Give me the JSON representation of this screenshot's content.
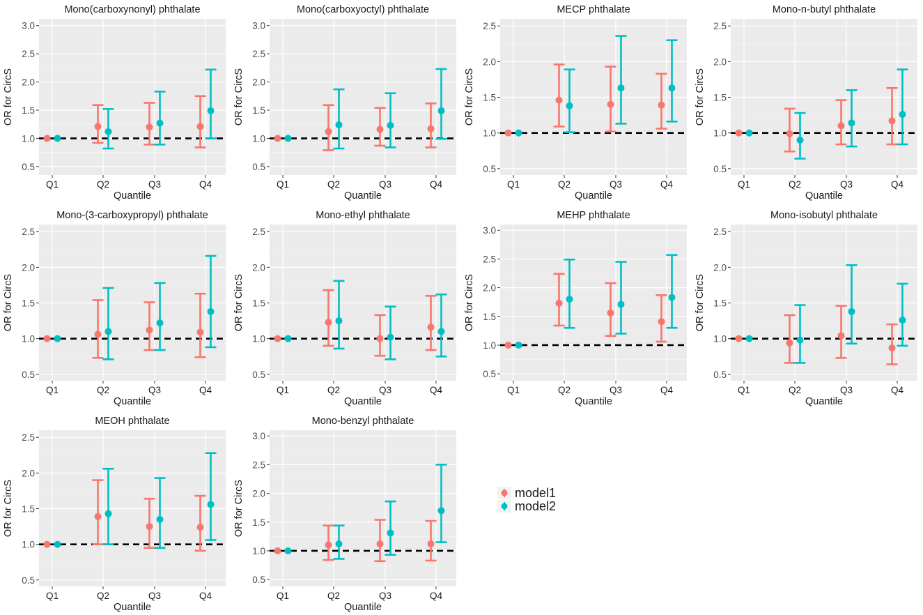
{
  "figure": {
    "legend": {
      "position": "right",
      "entries": [
        {
          "label": "model1",
          "color": "#F8766D"
        },
        {
          "label": "model2",
          "color": "#00BFC4"
        }
      ]
    }
  },
  "chart_data": [
    {
      "type": "errorbar",
      "title": "Mono(carboxynonyl) phthalate",
      "xlabel": "Quantile",
      "ylabel": "OR for CircS",
      "categories": [
        "Q1",
        "Q2",
        "Q3",
        "Q4"
      ],
      "yticks": [
        0.5,
        1.0,
        1.5,
        2.0,
        2.5,
        3.0
      ],
      "ytick_labels": [
        "0.5",
        "1.0",
        "1.5",
        "2.0",
        "2.5",
        "3.0"
      ],
      "ylim": [
        0.35,
        3.12
      ],
      "reference_line": 1.0,
      "series": [
        {
          "name": "model1",
          "color": "#F8766D",
          "points": [
            {
              "or": 1.0,
              "low": 1.0,
              "high": 1.0
            },
            {
              "or": 1.21,
              "low": 0.92,
              "high": 1.59
            },
            {
              "or": 1.2,
              "low": 0.89,
              "high": 1.63
            },
            {
              "or": 1.21,
              "low": 0.84,
              "high": 1.75
            }
          ]
        },
        {
          "name": "model2",
          "color": "#00BFC4",
          "points": [
            {
              "or": 1.0,
              "low": 1.0,
              "high": 1.0
            },
            {
              "or": 1.12,
              "low": 0.82,
              "high": 1.52
            },
            {
              "or": 1.27,
              "low": 0.89,
              "high": 1.83
            },
            {
              "or": 1.49,
              "low": 1.0,
              "high": 2.22
            }
          ]
        }
      ]
    },
    {
      "type": "errorbar",
      "title": "Mono(carboxyoctyl) phthalate",
      "xlabel": "Quantile",
      "ylabel": "OR for CircS",
      "categories": [
        "Q1",
        "Q2",
        "Q3",
        "Q4"
      ],
      "yticks": [
        0.5,
        1.0,
        1.5,
        2.0,
        2.5,
        3.0
      ],
      "ytick_labels": [
        "0.5",
        "1.0",
        "1.5",
        "2.0",
        "2.5",
        "3.0"
      ],
      "ylim": [
        0.35,
        3.12
      ],
      "reference_line": 1.0,
      "series": [
        {
          "name": "model1",
          "color": "#F8766D",
          "points": [
            {
              "or": 1.0,
              "low": 1.0,
              "high": 1.0
            },
            {
              "or": 1.12,
              "low": 0.79,
              "high": 1.59
            },
            {
              "or": 1.16,
              "low": 0.87,
              "high": 1.54
            },
            {
              "or": 1.17,
              "low": 0.84,
              "high": 1.62
            }
          ]
        },
        {
          "name": "model2",
          "color": "#00BFC4",
          "points": [
            {
              "or": 1.0,
              "low": 1.0,
              "high": 1.0
            },
            {
              "or": 1.24,
              "low": 0.82,
              "high": 1.87
            },
            {
              "or": 1.23,
              "low": 0.84,
              "high": 1.8
            },
            {
              "or": 1.49,
              "low": 0.99,
              "high": 2.23
            }
          ]
        }
      ]
    },
    {
      "type": "errorbar",
      "title": "MECP phthalate",
      "xlabel": "Quantile",
      "ylabel": "OR for CircS",
      "categories": [
        "Q1",
        "Q2",
        "Q3",
        "Q4"
      ],
      "yticks": [
        0.5,
        1.0,
        1.5,
        2.0,
        2.5
      ],
      "ytick_labels": [
        "0.5",
        "1.0",
        "1.5",
        "2.0",
        "2.5"
      ],
      "ylim": [
        0.41,
        2.6
      ],
      "reference_line": 1.0,
      "series": [
        {
          "name": "model1",
          "color": "#F8766D",
          "points": [
            {
              "or": 1.0,
              "low": 1.0,
              "high": 1.0
            },
            {
              "or": 1.46,
              "low": 1.09,
              "high": 1.96
            },
            {
              "or": 1.4,
              "low": 1.02,
              "high": 1.93
            },
            {
              "or": 1.39,
              "low": 1.06,
              "high": 1.83
            }
          ]
        },
        {
          "name": "model2",
          "color": "#00BFC4",
          "points": [
            {
              "or": 1.0,
              "low": 1.0,
              "high": 1.0
            },
            {
              "or": 1.38,
              "low": 1.01,
              "high": 1.89
            },
            {
              "or": 1.63,
              "low": 1.13,
              "high": 2.36
            },
            {
              "or": 1.63,
              "low": 1.16,
              "high": 2.3
            }
          ]
        }
      ]
    },
    {
      "type": "errorbar",
      "title": "Mono-n-butyl phthalate",
      "xlabel": "Quantile",
      "ylabel": "OR for CircS",
      "categories": [
        "Q1",
        "Q2",
        "Q3",
        "Q4"
      ],
      "yticks": [
        0.5,
        1.0,
        1.5,
        2.0,
        2.5
      ],
      "ytick_labels": [
        "0.5",
        "1.0",
        "1.5",
        "2.0",
        "2.5"
      ],
      "ylim": [
        0.41,
        2.6
      ],
      "reference_line": 1.0,
      "series": [
        {
          "name": "model1",
          "color": "#F8766D",
          "points": [
            {
              "or": 1.0,
              "low": 1.0,
              "high": 1.0
            },
            {
              "or": 0.99,
              "low": 0.74,
              "high": 1.34
            },
            {
              "or": 1.1,
              "low": 0.84,
              "high": 1.46
            },
            {
              "or": 1.17,
              "low": 0.84,
              "high": 1.63
            }
          ]
        },
        {
          "name": "model2",
          "color": "#00BFC4",
          "points": [
            {
              "or": 1.0,
              "low": 1.0,
              "high": 1.0
            },
            {
              "or": 0.9,
              "low": 0.64,
              "high": 1.28
            },
            {
              "or": 1.14,
              "low": 0.81,
              "high": 1.6
            },
            {
              "or": 1.26,
              "low": 0.84,
              "high": 1.89
            }
          ]
        }
      ]
    },
    {
      "type": "errorbar",
      "title": "Mono-(3-carboxypropyl) phthalate",
      "xlabel": "Quantile",
      "ylabel": "OR for CircS",
      "categories": [
        "Q1",
        "Q2",
        "Q3",
        "Q4"
      ],
      "yticks": [
        0.5,
        1.0,
        1.5,
        2.0,
        2.5
      ],
      "ytick_labels": [
        "0.5",
        "1.0",
        "1.5",
        "2.0",
        "2.5"
      ],
      "ylim": [
        0.41,
        2.6
      ],
      "reference_line": 1.0,
      "series": [
        {
          "name": "model1",
          "color": "#F8766D",
          "points": [
            {
              "or": 1.0,
              "low": 1.0,
              "high": 1.0
            },
            {
              "or": 1.06,
              "low": 0.73,
              "high": 1.54
            },
            {
              "or": 1.12,
              "low": 0.84,
              "high": 1.51
            },
            {
              "or": 1.09,
              "low": 0.74,
              "high": 1.63
            }
          ]
        },
        {
          "name": "model2",
          "color": "#00BFC4",
          "points": [
            {
              "or": 1.0,
              "low": 1.0,
              "high": 1.0
            },
            {
              "or": 1.1,
              "low": 0.71,
              "high": 1.71
            },
            {
              "or": 1.22,
              "low": 0.84,
              "high": 1.78
            },
            {
              "or": 1.38,
              "low": 0.88,
              "high": 2.16
            }
          ]
        }
      ]
    },
    {
      "type": "errorbar",
      "title": "Mono-ethyl phthalate",
      "xlabel": "Quantile",
      "ylabel": "OR for CircS",
      "categories": [
        "Q1",
        "Q2",
        "Q3",
        "Q4"
      ],
      "yticks": [
        0.5,
        1.0,
        1.5,
        2.0,
        2.5
      ],
      "ytick_labels": [
        "0.5",
        "1.0",
        "1.5",
        "2.0",
        "2.5"
      ],
      "ylim": [
        0.41,
        2.6
      ],
      "reference_line": 1.0,
      "series": [
        {
          "name": "model1",
          "color": "#F8766D",
          "points": [
            {
              "or": 1.0,
              "low": 1.0,
              "high": 1.0
            },
            {
              "or": 1.23,
              "low": 0.9,
              "high": 1.68
            },
            {
              "or": 1.0,
              "low": 0.76,
              "high": 1.33
            },
            {
              "or": 1.16,
              "low": 0.84,
              "high": 1.6
            }
          ]
        },
        {
          "name": "model2",
          "color": "#00BFC4",
          "points": [
            {
              "or": 1.0,
              "low": 1.0,
              "high": 1.0
            },
            {
              "or": 1.25,
              "low": 0.86,
              "high": 1.81
            },
            {
              "or": 1.02,
              "low": 0.71,
              "high": 1.45
            },
            {
              "or": 1.1,
              "low": 0.75,
              "high": 1.62
            }
          ]
        }
      ]
    },
    {
      "type": "errorbar",
      "title": "MEHP phthalate",
      "xlabel": "Quantile",
      "ylabel": "OR for CircS",
      "categories": [
        "Q1",
        "Q2",
        "Q3",
        "Q4"
      ],
      "yticks": [
        0.5,
        1.0,
        1.5,
        2.0,
        2.5,
        3.0
      ],
      "ytick_labels": [
        "0.5",
        "1.0",
        "1.5",
        "2.0",
        "2.5",
        "3.0"
      ],
      "ylim": [
        0.38,
        3.1
      ],
      "reference_line": 1.0,
      "series": [
        {
          "name": "model1",
          "color": "#F8766D",
          "points": [
            {
              "or": 1.0,
              "low": 1.0,
              "high": 1.0
            },
            {
              "or": 1.73,
              "low": 1.34,
              "high": 2.24
            },
            {
              "or": 1.56,
              "low": 1.16,
              "high": 2.08
            },
            {
              "or": 1.41,
              "low": 1.06,
              "high": 1.87
            }
          ]
        },
        {
          "name": "model2",
          "color": "#00BFC4",
          "points": [
            {
              "or": 1.0,
              "low": 1.0,
              "high": 1.0
            },
            {
              "or": 1.8,
              "low": 1.3,
              "high": 2.49
            },
            {
              "or": 1.71,
              "low": 1.2,
              "high": 2.45
            },
            {
              "or": 1.83,
              "low": 1.3,
              "high": 2.57
            }
          ]
        }
      ]
    },
    {
      "type": "errorbar",
      "title": "Mono-isobutyl phthalate",
      "xlabel": "Quantile",
      "ylabel": "OR for CircS",
      "categories": [
        "Q1",
        "Q2",
        "Q3",
        "Q4"
      ],
      "yticks": [
        0.5,
        1.0,
        1.5,
        2.0,
        2.5
      ],
      "ytick_labels": [
        "0.5",
        "1.0",
        "1.5",
        "2.0",
        "2.5"
      ],
      "ylim": [
        0.41,
        2.6
      ],
      "reference_line": 1.0,
      "series": [
        {
          "name": "model1",
          "color": "#F8766D",
          "points": [
            {
              "or": 1.0,
              "low": 1.0,
              "high": 1.0
            },
            {
              "or": 0.94,
              "low": 0.66,
              "high": 1.33
            },
            {
              "or": 1.04,
              "low": 0.73,
              "high": 1.46
            },
            {
              "or": 0.87,
              "low": 0.64,
              "high": 1.2
            }
          ]
        },
        {
          "name": "model2",
          "color": "#00BFC4",
          "points": [
            {
              "or": 1.0,
              "low": 1.0,
              "high": 1.0
            },
            {
              "or": 0.98,
              "low": 0.66,
              "high": 1.47
            },
            {
              "or": 1.38,
              "low": 0.93,
              "high": 2.03
            },
            {
              "or": 1.26,
              "low": 0.9,
              "high": 1.77
            }
          ]
        }
      ]
    },
    {
      "type": "errorbar",
      "title": "MEOH phthalate",
      "xlabel": "Quantile",
      "ylabel": "OR for CircS",
      "categories": [
        "Q1",
        "Q2",
        "Q3",
        "Q4"
      ],
      "yticks": [
        0.5,
        1.0,
        1.5,
        2.0,
        2.5
      ],
      "ytick_labels": [
        "0.5",
        "1.0",
        "1.5",
        "2.0",
        "2.5"
      ],
      "ylim": [
        0.41,
        2.6
      ],
      "reference_line": 1.0,
      "series": [
        {
          "name": "model1",
          "color": "#F8766D",
          "points": [
            {
              "or": 1.0,
              "low": 1.0,
              "high": 1.0
            },
            {
              "or": 1.39,
              "low": 1.0,
              "high": 1.9
            },
            {
              "or": 1.25,
              "low": 0.95,
              "high": 1.64
            },
            {
              "or": 1.24,
              "low": 0.91,
              "high": 1.68
            }
          ]
        },
        {
          "name": "model2",
          "color": "#00BFC4",
          "points": [
            {
              "or": 1.0,
              "low": 1.0,
              "high": 1.0
            },
            {
              "or": 1.43,
              "low": 1.0,
              "high": 2.06
            },
            {
              "or": 1.35,
              "low": 0.95,
              "high": 1.93
            },
            {
              "or": 1.56,
              "low": 1.06,
              "high": 2.28
            }
          ]
        }
      ]
    },
    {
      "type": "errorbar",
      "title": "Mono-benzyl phthalate",
      "xlabel": "Quantile",
      "ylabel": "OR for CircS",
      "categories": [
        "Q1",
        "Q2",
        "Q3",
        "Q4"
      ],
      "yticks": [
        0.5,
        1.0,
        1.5,
        2.0,
        2.5,
        3.0
      ],
      "ytick_labels": [
        "0.5",
        "1.0",
        "1.5",
        "2.0",
        "2.5",
        "3.0"
      ],
      "ylim": [
        0.38,
        3.1
      ],
      "reference_line": 1.0,
      "series": [
        {
          "name": "model1",
          "color": "#F8766D",
          "points": [
            {
              "or": 1.0,
              "low": 1.0,
              "high": 1.0
            },
            {
              "or": 1.1,
              "low": 0.84,
              "high": 1.44
            },
            {
              "or": 1.12,
              "low": 0.82,
              "high": 1.54
            },
            {
              "or": 1.12,
              "low": 0.83,
              "high": 1.52
            }
          ]
        },
        {
          "name": "model2",
          "color": "#00BFC4",
          "points": [
            {
              "or": 1.0,
              "low": 1.0,
              "high": 1.0
            },
            {
              "or": 1.12,
              "low": 0.86,
              "high": 1.44
            },
            {
              "or": 1.31,
              "low": 0.93,
              "high": 1.86
            },
            {
              "or": 1.7,
              "low": 1.15,
              "high": 2.5
            }
          ]
        }
      ]
    }
  ]
}
